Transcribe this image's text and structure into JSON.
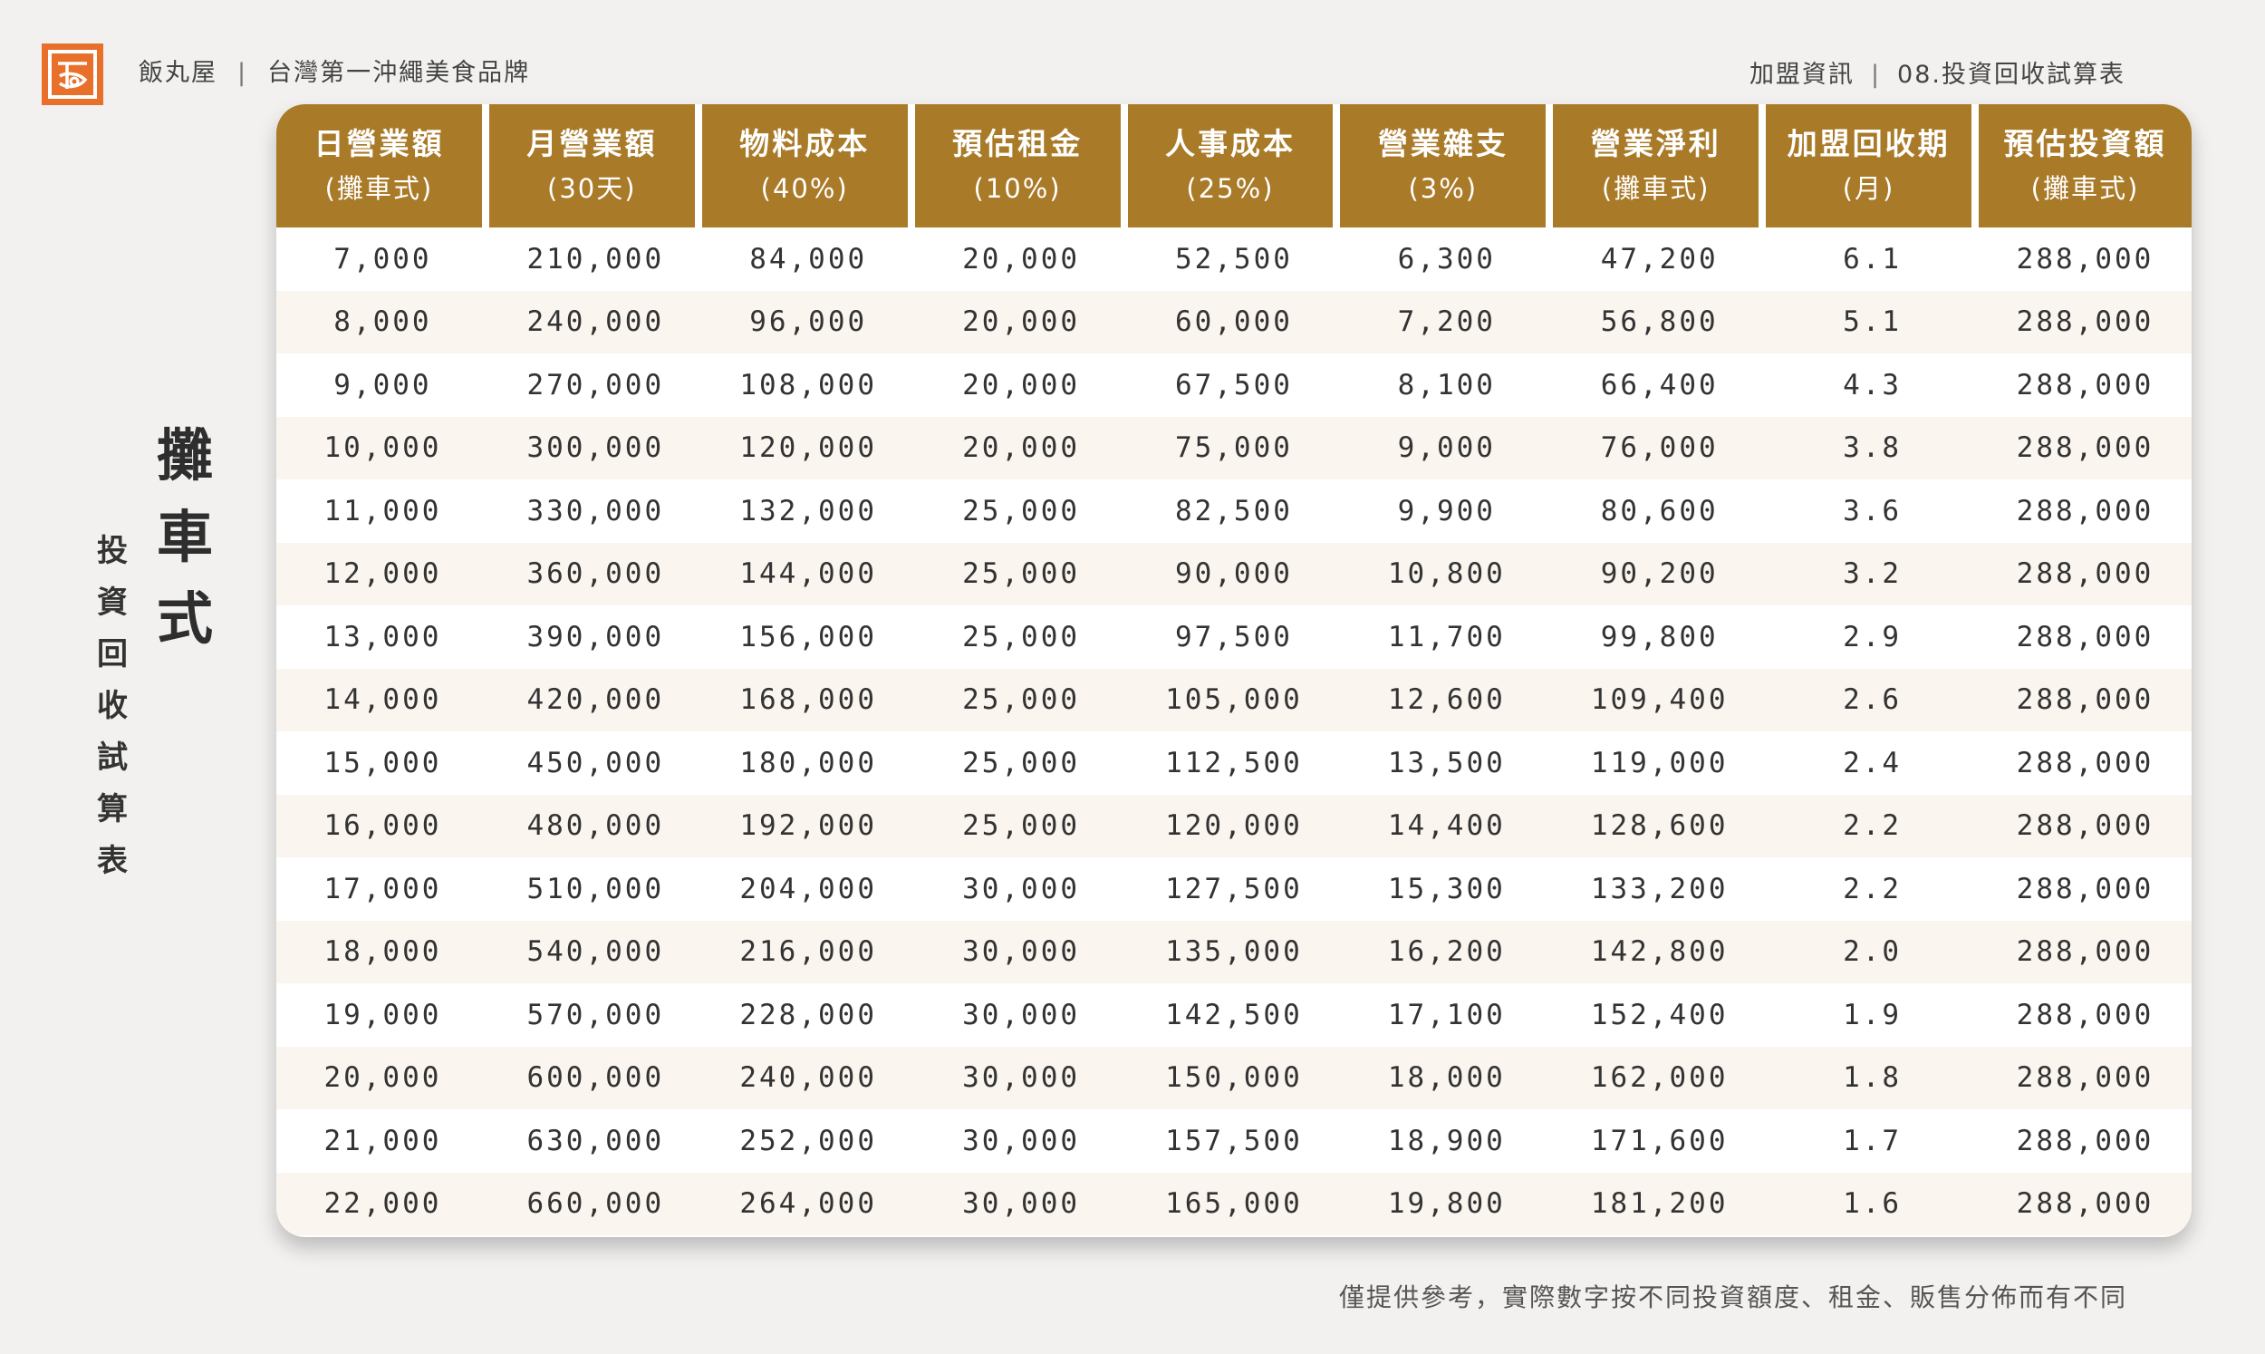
{
  "header": {
    "logo_icon": "fan-wan-wu-logo-icon",
    "brand_name": "飯丸屋",
    "separator": "|",
    "tagline": "台灣第一沖繩美食品牌",
    "section": "加盟資訊",
    "page_title": "08.投資回收試算表"
  },
  "side": {
    "subtitle": [
      "投",
      "資",
      "回",
      "收",
      "試",
      "算",
      "表"
    ],
    "title": [
      "攤",
      "車",
      "式"
    ]
  },
  "table": {
    "columns": [
      {
        "label": "日營業額",
        "sub": "(攤車式)"
      },
      {
        "label": "月營業額",
        "sub": "(30天)"
      },
      {
        "label": "物料成本",
        "sub": "(40%)"
      },
      {
        "label": "預估租金",
        "sub": "(10%)"
      },
      {
        "label": "人事成本",
        "sub": "(25%)"
      },
      {
        "label": "營業雜支",
        "sub": "(3%)"
      },
      {
        "label": "營業淨利",
        "sub": "(攤車式)"
      },
      {
        "label": "加盟回收期",
        "sub": "(月)"
      },
      {
        "label": "預估投資額",
        "sub": "(攤車式)"
      }
    ],
    "rows": [
      [
        "7,000",
        "210,000",
        "84,000",
        "20,000",
        "52,500",
        "6,300",
        "47,200",
        "6.1",
        "288,000"
      ],
      [
        "8,000",
        "240,000",
        "96,000",
        "20,000",
        "60,000",
        "7,200",
        "56,800",
        "5.1",
        "288,000"
      ],
      [
        "9,000",
        "270,000",
        "108,000",
        "20,000",
        "67,500",
        "8,100",
        "66,400",
        "4.3",
        "288,000"
      ],
      [
        "10,000",
        "300,000",
        "120,000",
        "20,000",
        "75,000",
        "9,000",
        "76,000",
        "3.8",
        "288,000"
      ],
      [
        "11,000",
        "330,000",
        "132,000",
        "25,000",
        "82,500",
        "9,900",
        "80,600",
        "3.6",
        "288,000"
      ],
      [
        "12,000",
        "360,000",
        "144,000",
        "25,000",
        "90,000",
        "10,800",
        "90,200",
        "3.2",
        "288,000"
      ],
      [
        "13,000",
        "390,000",
        "156,000",
        "25,000",
        "97,500",
        "11,700",
        "99,800",
        "2.9",
        "288,000"
      ],
      [
        "14,000",
        "420,000",
        "168,000",
        "25,000",
        "105,000",
        "12,600",
        "109,400",
        "2.6",
        "288,000"
      ],
      [
        "15,000",
        "450,000",
        "180,000",
        "25,000",
        "112,500",
        "13,500",
        "119,000",
        "2.4",
        "288,000"
      ],
      [
        "16,000",
        "480,000",
        "192,000",
        "25,000",
        "120,000",
        "14,400",
        "128,600",
        "2.2",
        "288,000"
      ],
      [
        "17,000",
        "510,000",
        "204,000",
        "30,000",
        "127,500",
        "15,300",
        "133,200",
        "2.2",
        "288,000"
      ],
      [
        "18,000",
        "540,000",
        "216,000",
        "30,000",
        "135,000",
        "16,200",
        "142,800",
        "2.0",
        "288,000"
      ],
      [
        "19,000",
        "570,000",
        "228,000",
        "30,000",
        "142,500",
        "17,100",
        "152,400",
        "1.9",
        "288,000"
      ],
      [
        "20,000",
        "600,000",
        "240,000",
        "30,000",
        "150,000",
        "18,000",
        "162,000",
        "1.8",
        "288,000"
      ],
      [
        "21,000",
        "630,000",
        "252,000",
        "30,000",
        "157,500",
        "18,900",
        "171,600",
        "1.7",
        "288,000"
      ],
      [
        "22,000",
        "660,000",
        "264,000",
        "30,000",
        "165,000",
        "19,800",
        "181,200",
        "1.6",
        "288,000"
      ]
    ]
  },
  "footnote": "僅提供參考，實際數字按不同投資額度、租金、販售分佈而有不同",
  "colors": {
    "accent": "#a97a28",
    "logo": "#e8702a",
    "background": "#f2f1ef",
    "row_alt": "#faf5ef"
  }
}
